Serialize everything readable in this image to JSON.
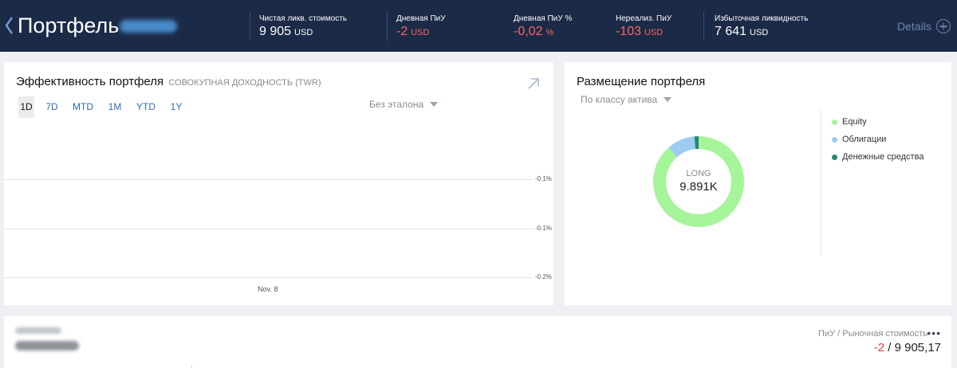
{
  "header": {
    "title": "Портфель",
    "details_label": "Details",
    "metrics": [
      {
        "label": "Чистая ликв. стоимость",
        "value": "9 905",
        "unit": "USD",
        "negative": false
      },
      {
        "label": "Дневная ПиУ",
        "value": "-2",
        "unit": "USD",
        "negative": true
      },
      {
        "label": "Дневная ПиУ %",
        "value": "-0,02",
        "unit": "%",
        "negative": true
      },
      {
        "label": "Нереализ. ПиУ",
        "value": "-103",
        "unit": "USD",
        "negative": true
      },
      {
        "label": "Избыточная ликвидность",
        "value": "7 641",
        "unit": "USD",
        "negative": false
      }
    ]
  },
  "performance": {
    "title": "Эффективность портфеля",
    "subtitle": "СОВОКУПНАЯ ДОХОДНОСТЬ (TWR)",
    "periods": [
      "1D",
      "7D",
      "MTD",
      "1M",
      "YTD",
      "1Y"
    ],
    "active_period": "1D",
    "benchmark": "Без эталона",
    "chart_data": {
      "type": "line",
      "x_ticks": [
        "Nov. 8"
      ],
      "y_ticks": [
        "-0.1%",
        "-0.1%",
        "-0.2%"
      ],
      "series": []
    }
  },
  "allocation": {
    "title": "Размещение портфеля",
    "filter": "По классу актива",
    "center_label": "LONG",
    "center_value": "9.891K",
    "chart_data": {
      "type": "pie",
      "labels": [
        "Equity",
        "Облигации",
        "Денежные средства"
      ],
      "values": [
        88.5,
        10,
        1.5
      ],
      "colors": [
        "#a6f59a",
        "#9dccf2",
        "#1f8a72"
      ]
    },
    "legend": [
      {
        "label": "Equity",
        "color": "#a6f59a"
      },
      {
        "label": "Облигации",
        "color": "#9dccf2"
      },
      {
        "label": "Денежные средства",
        "color": "#1f8a72"
      }
    ]
  },
  "position": {
    "label": "ПиУ / Рыночная стоимость",
    "pnl": "-2",
    "slash": " / ",
    "market_value": "9 905,17"
  }
}
